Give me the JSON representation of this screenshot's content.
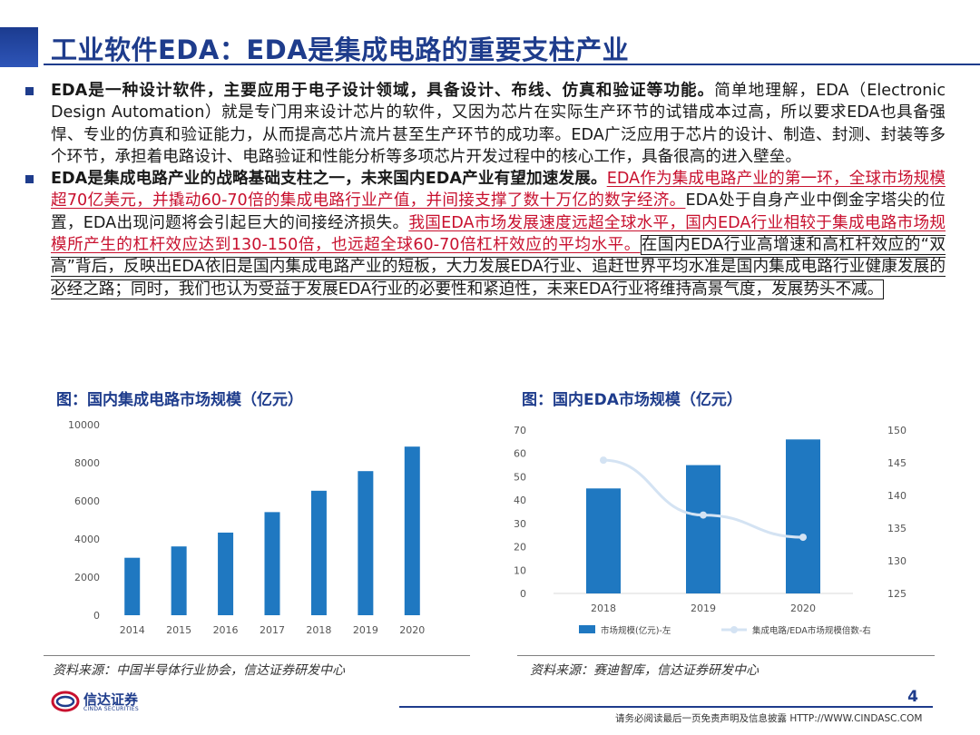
{
  "header": {
    "title": "工业软件EDA：EDA是集成电路的重要支柱产业"
  },
  "bullets": [
    {
      "bold": "EDA是一种设计软件，主要应用于电子设计领域，具备设计、布线、仿真和验证等功能。",
      "text": "简单地理解，EDA（Electronic Design Automation）就是专门用来设计芯片的软件，又因为芯片在实际生产环节的试错成本过高，所以要求EDA也具备强悍、专业的仿真和验证能力，从而提高芯片流片甚至生产环节的成功率。EDA广泛应用于芯片的设计、制造、封测、封装等多个环节，承担着电路设计、电路验证和性能分析等多项芯片开发过程中的核心工作，具备很高的进入壁垒。"
    },
    {
      "bold": "EDA是集成电路产业的战略基础支柱之一，未来国内EDA产业有望加速发展。",
      "red1": "EDA作为集成电路产业的第一环，全球市场规模超70亿美元，并撬动60-70倍的集成电路行业产值，并间接支撑了数十万亿的数字经济。",
      "text1": "EDA处于自身产业中倒金字塔尖的位置，EDA出现问题将会引起巨大的间接经济损失。",
      "red2": "我国EDA市场发展速度远超全球水平，国内EDA行业相较于集成电路市场规模所产生的杠杆效应达到130-150倍，也远超全球60-70倍杠杆效应的平均水平。",
      "text2": "在国内EDA行业高增速和高杠杆效应的“双高”背后，反映出EDA依旧是国内集成电路产业的短板，大力发展EDA行业、追赶世界平均水准是国内集成电路行业健康发展的必经之路；同时，我们也认为受益于发展EDA行业的必要性和紧迫性，未来EDA行业将维持高景气度，发展势头不减。"
    }
  ],
  "figure_left": {
    "caption": "图：国内集成电路市场规模（亿元）",
    "source": "资料来源：中国半导体行业协会，信达证券研发中心"
  },
  "figure_right": {
    "caption": "图：国内EDA市场规模（亿元）",
    "source": "资料来源：赛迪智库，信达证券研发中心"
  },
  "chart_data": [
    {
      "type": "bar",
      "categories": [
        "2014",
        "2015",
        "2016",
        "2017",
        "2018",
        "2019",
        "2020"
      ],
      "values": [
        3015,
        3610,
        4336,
        5411,
        6532,
        7562,
        8848
      ],
      "title": "",
      "xlabel": "",
      "ylabel": "",
      "ylim": [
        0,
        10000
      ],
      "yticks": [
        "0",
        "2000",
        "4000",
        "6000",
        "8000",
        "10000"
      ],
      "grid": false,
      "colors": {
        "bar": "#1f78c1"
      }
    },
    {
      "type": "bar",
      "categories": [
        "2018",
        "2019",
        "2020"
      ],
      "series": [
        {
          "name": "市场规模(亿元)-左",
          "kind": "bar",
          "axis": "left",
          "values": [
            45,
            55,
            66
          ]
        },
        {
          "name": "集成电路/EDA市场规模倍数-右",
          "kind": "line",
          "axis": "right",
          "values": [
            145.4,
            137.0,
            133.6
          ]
        }
      ],
      "ylim_left": [
        0,
        70
      ],
      "ylim_right": [
        125,
        150
      ],
      "yticks_left": [
        "0",
        "10",
        "20",
        "30",
        "40",
        "50",
        "60",
        "70"
      ],
      "yticks_right": [
        "125",
        "130",
        "135",
        "140",
        "145",
        "150"
      ],
      "legend_position": "bottom",
      "grid": false,
      "colors": {
        "bar": "#1f78c1",
        "line": "#d4e3f3",
        "marker": "#d4e3f3"
      }
    }
  ],
  "footer": {
    "logo_text": "信达证券",
    "logo_sub": "CINDA SECURITIES",
    "page": "4",
    "disclaimer": "请务必阅读最后一页免责声明及信息披露  HTTP://WWW.CINDASC.COM"
  },
  "colors": {
    "brand": "#1e3c8c",
    "accent_red": "#c8102e"
  }
}
